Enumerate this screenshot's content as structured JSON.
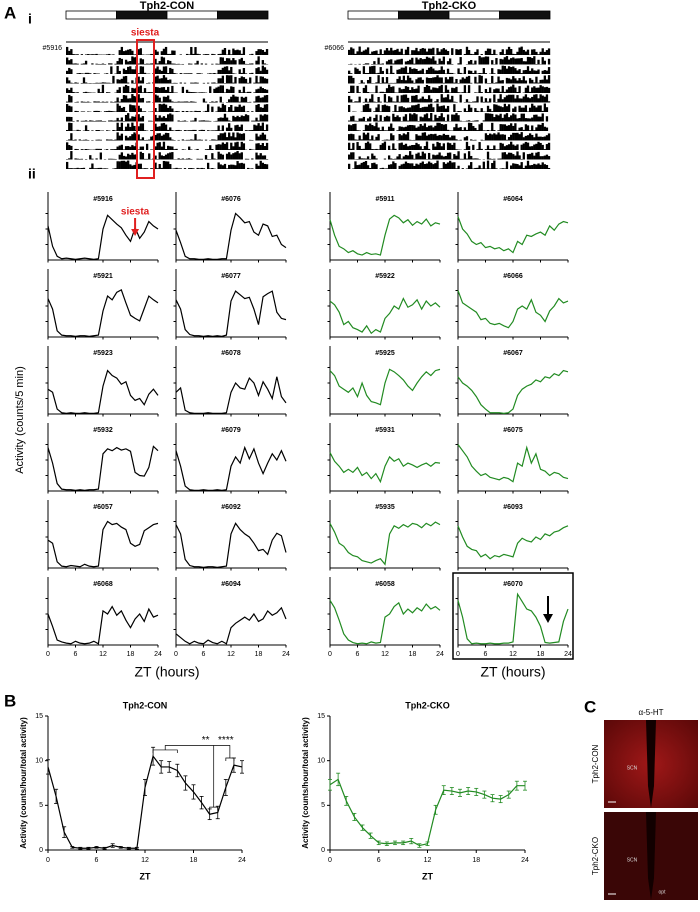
{
  "panel_labels": {
    "A": "A",
    "i": "i",
    "ii": "ii",
    "B": "B",
    "C": "C"
  },
  "actograms": [
    {
      "title": "Tph2-CON",
      "id": "#5916",
      "annotation": "siesta"
    },
    {
      "title": "Tph2-CKO",
      "id": "#6066"
    }
  ],
  "traces": {
    "type": "line",
    "y_label": "Activity (counts/5 min)",
    "x_label": "ZT (hours)",
    "annotation": "siesta",
    "x": [
      0,
      1,
      2,
      3,
      4,
      5,
      6,
      7,
      8,
      9,
      10,
      11,
      12,
      13,
      14,
      15,
      16,
      17,
      18,
      19,
      20,
      21,
      22,
      23,
      24
    ],
    "xlim": [
      0,
      24
    ],
    "ylim": [
      0,
      100
    ],
    "xticks": [
      0,
      6,
      12,
      18,
      24
    ],
    "columns": [
      {
        "color": "#000000",
        "mice": [
          {
            "id": "#5916",
            "values": [
              55,
              22,
              6,
              2,
              3,
              2,
              1,
              2,
              3,
              2,
              1,
              2,
              50,
              72,
              65,
              58,
              52,
              40,
              30,
              52,
              35,
              45,
              62,
              55,
              50
            ]
          },
          {
            "id": "#5921",
            "values": [
              62,
              45,
              10,
              3,
              2,
              2,
              1,
              2,
              2,
              1,
              2,
              3,
              42,
              66,
              60,
              72,
              76,
              55,
              35,
              30,
              26,
              46,
              66,
              60,
              55
            ]
          },
          {
            "id": "#5923",
            "values": [
              40,
              35,
              8,
              2,
              1,
              2,
              1,
              1,
              2,
              1,
              1,
              2,
              45,
              70,
              62,
              58,
              48,
              52,
              30,
              22,
              25,
              15,
              32,
              40,
              30
            ]
          },
          {
            "id": "#5932",
            "values": [
              70,
              45,
              12,
              3,
              2,
              2,
              1,
              2,
              1,
              2,
              2,
              3,
              60,
              68,
              65,
              70,
              66,
              68,
              64,
              30,
              25,
              24,
              38,
              72,
              65
            ]
          },
          {
            "id": "#6057",
            "values": [
              45,
              40,
              10,
              3,
              2,
              4,
              3,
              2,
              6,
              3,
              2,
              3,
              62,
              75,
              70,
              72,
              66,
              62,
              40,
              35,
              38,
              60,
              65,
              70,
              72
            ]
          },
          {
            "id": "#6068",
            "values": [
              50,
              30,
              8,
              5,
              3,
              2,
              6,
              3,
              2,
              3,
              6,
              2,
              55,
              50,
              62,
              48,
              55,
              40,
              28,
              42,
              50,
              38,
              58,
              45,
              48
            ]
          }
        ]
      },
      {
        "color": "#000000",
        "mice": [
          {
            "id": "#6076",
            "values": [
              48,
              28,
              6,
              2,
              2,
              1,
              1,
              2,
              1,
              1,
              2,
              2,
              48,
              75,
              68,
              60,
              62,
              45,
              40,
              58,
              55,
              38,
              40,
              25,
              20
            ]
          },
          {
            "id": "#6077",
            "values": [
              60,
              45,
              12,
              4,
              2,
              2,
              1,
              2,
              1,
              2,
              1,
              3,
              58,
              74,
              68,
              62,
              64,
              45,
              20,
              65,
              70,
              74,
              40,
              30,
              28
            ]
          },
          {
            "id": "#6078",
            "values": [
              35,
              42,
              6,
              2,
              1,
              1,
              1,
              2,
              1,
              1,
              1,
              2,
              35,
              50,
              42,
              40,
              58,
              50,
              30,
              52,
              40,
              25,
              60,
              28,
              18
            ]
          },
          {
            "id": "#6079",
            "values": [
              65,
              40,
              8,
              2,
              1,
              1,
              2,
              1,
              1,
              2,
              1,
              2,
              40,
              55,
              45,
              70,
              52,
              68,
              45,
              28,
              45,
              60,
              50,
              65,
              48
            ]
          },
          {
            "id": "#6092",
            "values": [
              70,
              55,
              14,
              4,
              2,
              2,
              1,
              2,
              2,
              1,
              2,
              3,
              55,
              72,
              62,
              55,
              50,
              40,
              28,
              30,
              22,
              45,
              56,
              52,
              25
            ]
          },
          {
            "id": "#6094",
            "values": [
              18,
              12,
              6,
              2,
              6,
              3,
              2,
              8,
              4,
              2,
              6,
              2,
              28,
              35,
              40,
              45,
              40,
              50,
              38,
              42,
              55,
              48,
              52,
              60,
              42
            ]
          }
        ]
      },
      {
        "color": "#228b22",
        "mice": [
          {
            "id": "#5911",
            "values": [
              65,
              40,
              22,
              18,
              12,
              15,
              10,
              8,
              12,
              9,
              10,
              8,
              40,
              66,
              72,
              68,
              60,
              65,
              56,
              62,
              58,
              66,
              55,
              60,
              58
            ]
          },
          {
            "id": "#5922",
            "values": [
              58,
              52,
              40,
              20,
              25,
              15,
              12,
              8,
              18,
              6,
              12,
              8,
              30,
              38,
              50,
              45,
              62,
              48,
              52,
              60,
              45,
              58,
              50,
              55,
              48
            ]
          },
          {
            "id": "#5925",
            "values": [
              70,
              62,
              45,
              40,
              35,
              42,
              28,
              50,
              30,
              20,
              18,
              15,
              50,
              72,
              68,
              62,
              55,
              45,
              38,
              50,
              60,
              68,
              62,
              70,
              72
            ]
          },
          {
            "id": "#5931",
            "values": [
              62,
              48,
              40,
              30,
              35,
              30,
              38,
              25,
              30,
              20,
              28,
              15,
              40,
              55,
              48,
              52,
              40,
              45,
              42,
              38,
              42,
              45,
              40,
              46,
              45
            ]
          },
          {
            "id": "#5935",
            "values": [
              72,
              58,
              40,
              35,
              25,
              20,
              18,
              12,
              10,
              8,
              12,
              15,
              6,
              55,
              68,
              64,
              70,
              66,
              72,
              70,
              65,
              72,
              68,
              74,
              70
            ]
          },
          {
            "id": "#6058",
            "values": [
              72,
              60,
              40,
              18,
              8,
              4,
              2,
              3,
              2,
              5,
              3,
              4,
              45,
              50,
              62,
              68,
              50,
              58,
              52,
              60,
              55,
              66,
              58,
              62,
              56
            ]
          }
        ]
      },
      {
        "color": "#228b22",
        "mice": [
          {
            "id": "#6064",
            "values": [
              70,
              50,
              42,
              30,
              25,
              28,
              20,
              22,
              18,
              20,
              15,
              18,
              12,
              30,
              25,
              40,
              38,
              42,
              45,
              40,
              55,
              48,
              58,
              62,
              60
            ]
          },
          {
            "id": "#6066",
            "values": [
              75,
              55,
              50,
              45,
              40,
              28,
              30,
              22,
              20,
              22,
              18,
              15,
              25,
              45,
              50,
              45,
              60,
              40,
              35,
              25,
              42,
              50,
              62,
              55,
              58
            ]
          },
          {
            "id": "#6067",
            "values": [
              60,
              50,
              45,
              38,
              28,
              15,
              8,
              2,
              2,
              2,
              1,
              2,
              8,
              30,
              40,
              45,
              48,
              55,
              52,
              60,
              58,
              65,
              62,
              70,
              68
            ]
          },
          {
            "id": "#6075",
            "values": [
              75,
              65,
              55,
              40,
              32,
              25,
              28,
              22,
              20,
              18,
              22,
              20,
              15,
              45,
              40,
              70,
              45,
              60,
              35,
              32,
              25,
              30,
              28,
              22,
              20
            ]
          },
          {
            "id": "#6093",
            "values": [
              68,
              50,
              35,
              30,
              28,
              18,
              22,
              15,
              20,
              18,
              22,
              20,
              18,
              40,
              48,
              44,
              42,
              50,
              46,
              55,
              52,
              58,
              60,
              65,
              68
            ]
          },
          {
            "id": "#6070",
            "values": [
              72,
              45,
              10,
              2,
              3,
              2,
              2,
              3,
              2,
              2,
              3,
              3,
              5,
              82,
              70,
              58,
              55,
              45,
              30,
              4,
              3,
              4,
              5,
              38,
              58
            ]
          }
        ]
      }
    ]
  },
  "chart_data": [
    {
      "type": "line",
      "title": "Tph2-CON",
      "y_label": "Activity (counts/hour/total activity)",
      "x_label": "ZT",
      "color": "#000000",
      "x": [
        0,
        1,
        2,
        3,
        4,
        5,
        6,
        7,
        8,
        9,
        10,
        11,
        12,
        13,
        14,
        15,
        16,
        17,
        18,
        19,
        20,
        21,
        22,
        23,
        24
      ],
      "values": [
        9.3,
        6.0,
        2.0,
        0.3,
        0.2,
        0.2,
        0.3,
        0.2,
        0.5,
        0.3,
        0.2,
        0.2,
        7.0,
        10.5,
        9.3,
        9.3,
        8.9,
        7.5,
        6.5,
        5.3,
        4.0,
        4.2,
        7.0,
        9.5,
        9.3
      ],
      "errors": [
        0.8,
        0.8,
        0.6,
        0.1,
        0.1,
        0.1,
        0.1,
        0.1,
        0.2,
        0.1,
        0.1,
        0.1,
        0.9,
        1.0,
        0.7,
        0.6,
        0.7,
        0.8,
        0.8,
        0.7,
        0.6,
        0.7,
        0.9,
        0.8,
        0.7
      ],
      "xlim": [
        0,
        24
      ],
      "ylim": [
        0,
        15
      ],
      "xticks": [
        0,
        6,
        12,
        18,
        24
      ],
      "yticks": [
        0,
        5,
        10,
        15
      ],
      "significance": [
        "**",
        "****"
      ]
    },
    {
      "type": "line",
      "title": "Tph2-CKO",
      "y_label": "Activity (counts/hour/total activity)",
      "x_label": "ZT",
      "color": "#228b22",
      "x": [
        0,
        1,
        2,
        3,
        4,
        5,
        6,
        7,
        8,
        9,
        10,
        11,
        12,
        13,
        14,
        15,
        16,
        17,
        18,
        19,
        20,
        21,
        22,
        23,
        24
      ],
      "values": [
        7.3,
        7.9,
        5.5,
        3.7,
        2.5,
        1.6,
        0.8,
        0.7,
        0.8,
        0.8,
        1.0,
        0.5,
        0.7,
        4.5,
        6.7,
        6.6,
        6.4,
        6.6,
        6.5,
        6.2,
        5.8,
        5.7,
        6.2,
        7.2,
        7.2
      ],
      "errors": [
        0.6,
        0.7,
        0.5,
        0.4,
        0.3,
        0.3,
        0.2,
        0.2,
        0.2,
        0.2,
        0.3,
        0.2,
        0.2,
        0.5,
        0.5,
        0.4,
        0.4,
        0.4,
        0.4,
        0.4,
        0.4,
        0.4,
        0.4,
        0.5,
        0.5
      ],
      "xlim": [
        0,
        24
      ],
      "ylim": [
        0,
        15
      ],
      "xticks": [
        0,
        6,
        12,
        18,
        24
      ],
      "yticks": [
        0,
        5,
        10,
        15
      ]
    }
  ],
  "panel_c": {
    "title": "α-5-HT",
    "images": [
      {
        "label": "Tph2-CON",
        "marks": [
          "SCN"
        ]
      },
      {
        "label": "Tph2-CKO",
        "marks": [
          "SCN",
          "opt"
        ]
      }
    ]
  }
}
